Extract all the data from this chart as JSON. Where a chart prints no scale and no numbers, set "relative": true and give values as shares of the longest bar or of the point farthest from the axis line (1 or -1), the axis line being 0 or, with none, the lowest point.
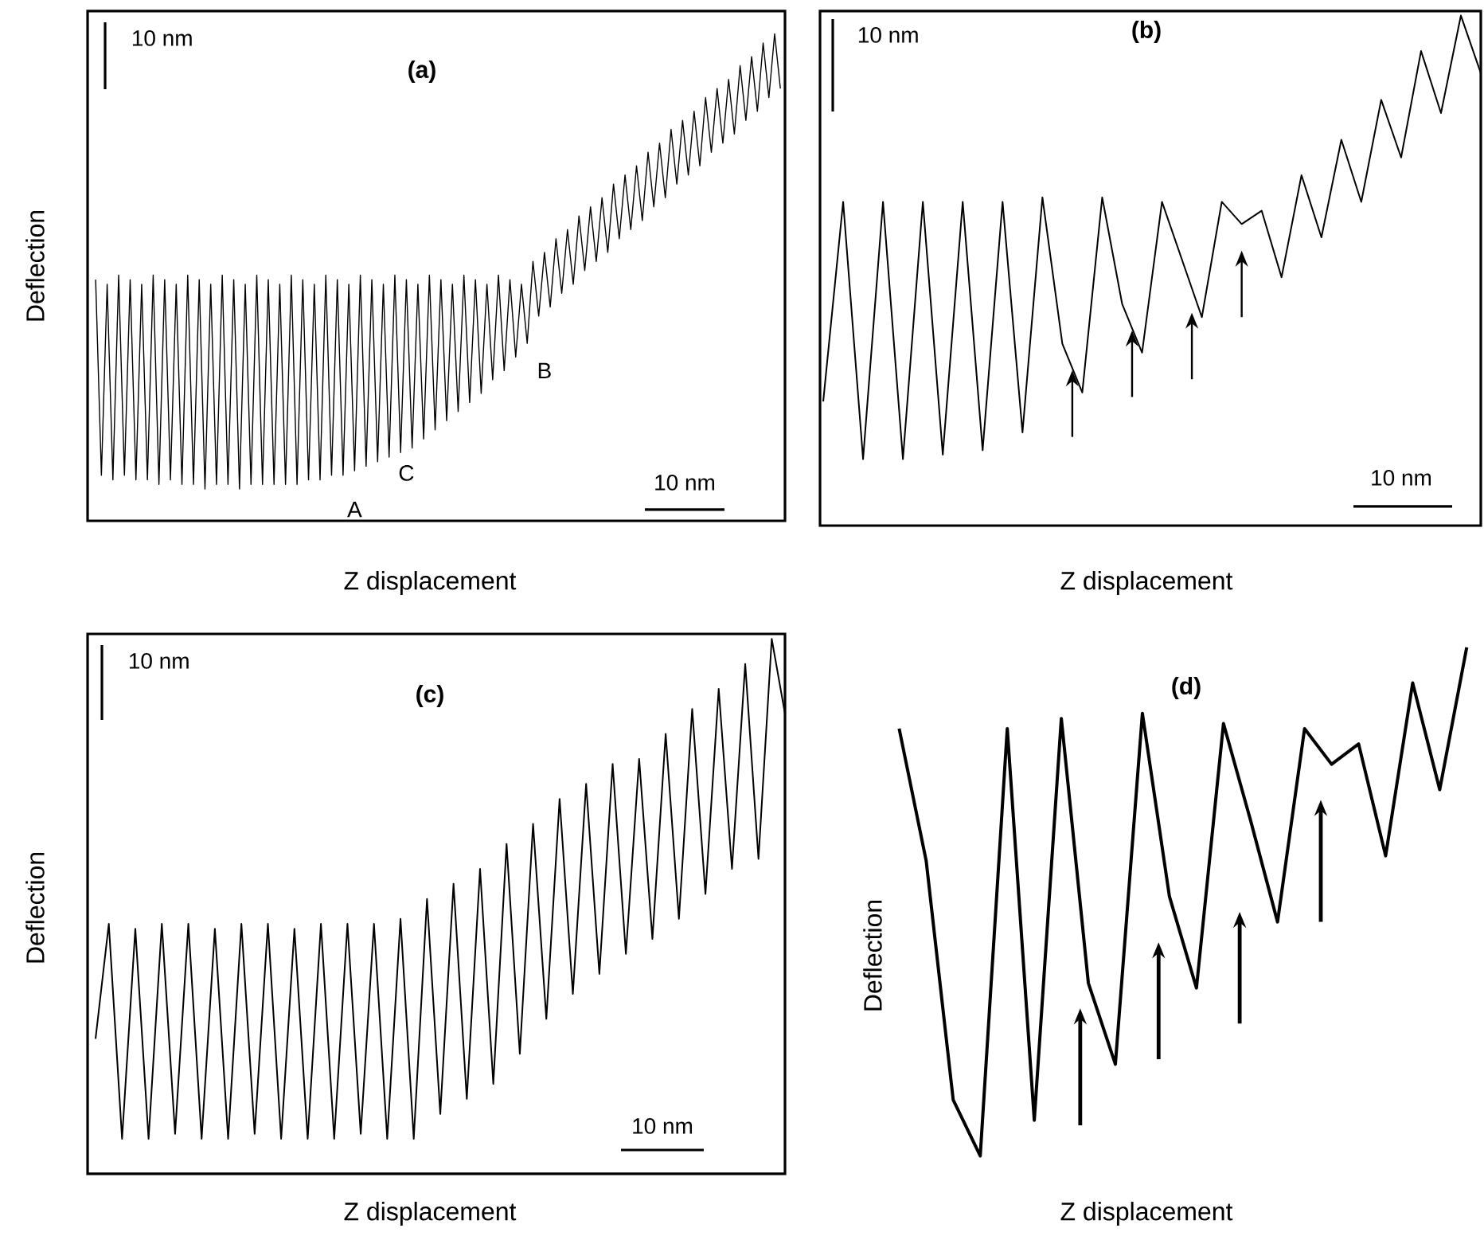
{
  "chart_data": [
    {
      "type": "line",
      "title": "(a)",
      "xlabel": "Z displacement",
      "ylabel": "Deflection",
      "relative": true,
      "color": "#000000",
      "annotations": [
        "10 nm",
        "10 nm",
        "A",
        "C",
        "B"
      ],
      "categories": [
        null,
        null,
        null,
        null,
        null,
        null,
        null,
        null,
        null,
        null,
        null,
        null,
        null,
        null,
        null,
        null,
        null,
        null,
        null,
        null,
        null,
        null,
        null,
        null,
        null,
        null,
        null,
        null,
        null,
        null,
        null,
        null,
        null,
        null,
        null,
        null,
        null,
        null,
        null,
        null,
        null,
        null,
        null,
        null,
        null,
        null,
        null,
        null,
        null,
        null,
        null,
        null,
        null,
        null,
        null,
        null,
        null,
        null,
        null,
        null,
        null,
        null,
        null,
        null,
        null,
        null,
        null,
        null,
        null,
        null,
        null,
        null,
        null,
        null,
        null,
        null,
        null,
        null,
        null,
        null,
        null,
        null,
        null,
        null,
        null,
        null,
        null,
        null,
        null,
        null,
        null,
        null,
        null,
        null,
        null,
        null,
        null,
        null,
        null,
        null,
        null,
        null,
        null,
        null,
        null,
        null,
        null,
        null,
        null,
        null,
        null,
        null,
        null,
        null,
        null,
        null,
        null,
        null,
        null,
        null
      ],
      "values": [
        0.46,
        0.03,
        0.45,
        0.02,
        0.47,
        0.03,
        0.46,
        0.02,
        0.45,
        0.02,
        0.47,
        0.01,
        0.46,
        0.02,
        0.45,
        0.01,
        0.47,
        0.01,
        0.46,
        0.0,
        0.45,
        0.01,
        0.47,
        0.01,
        0.46,
        0.0,
        0.45,
        0.01,
        0.47,
        0.01,
        0.46,
        0.01,
        0.45,
        0.01,
        0.47,
        0.01,
        0.46,
        0.02,
        0.45,
        0.02,
        0.47,
        0.03,
        0.46,
        0.03,
        0.45,
        0.04,
        0.47,
        0.05,
        0.46,
        0.06,
        0.45,
        0.07,
        0.47,
        0.08,
        0.46,
        0.09,
        0.45,
        0.11,
        0.47,
        0.13,
        0.46,
        0.15,
        0.45,
        0.17,
        0.47,
        0.19,
        0.46,
        0.21,
        0.45,
        0.24,
        0.47,
        0.26,
        0.46,
        0.29,
        0.45,
        0.32,
        0.5,
        0.38,
        0.52,
        0.4,
        0.55,
        0.43,
        0.57,
        0.45,
        0.6,
        0.48,
        0.62,
        0.5,
        0.64,
        0.52,
        0.67,
        0.55,
        0.69,
        0.57,
        0.71,
        0.59,
        0.74,
        0.62,
        0.76,
        0.64,
        0.79,
        0.67,
        0.81,
        0.69,
        0.83,
        0.71,
        0.86,
        0.74,
        0.88,
        0.76,
        0.9,
        0.78,
        0.93,
        0.81,
        0.95,
        0.83,
        0.98,
        0.86,
        1.0,
        0.88
      ]
    },
    {
      "type": "line",
      "title": "(b)",
      "xlabel": "Z displacement",
      "relative": true,
      "color": "#000000",
      "annotations": [
        "10 nm",
        "10 nm"
      ],
      "categories": [
        null,
        null,
        null,
        null,
        null,
        null,
        null,
        null,
        null,
        null,
        null,
        null,
        null,
        null,
        null,
        null,
        null,
        null,
        null,
        null,
        null,
        null,
        null,
        null,
        null,
        null,
        null,
        null,
        null,
        null,
        null,
        null,
        null,
        null
      ],
      "values": [
        0.13,
        0.58,
        0.0,
        0.58,
        0.0,
        0.58,
        0.01,
        0.58,
        0.02,
        0.58,
        0.06,
        0.59,
        0.26,
        0.15,
        0.59,
        0.35,
        0.24,
        0.58,
        0.45,
        0.32,
        0.58,
        0.53,
        0.56,
        0.41,
        0.64,
        0.5,
        0.72,
        0.58,
        0.81,
        0.68,
        0.92,
        0.78,
        1.0,
        0.87
      ]
    },
    {
      "type": "line",
      "title": "(c)",
      "xlabel": "Z displacement",
      "ylabel": "Deflection",
      "relative": true,
      "color": "#000000",
      "annotations": [
        "10 nm",
        "10 nm"
      ],
      "categories": [
        null,
        null,
        null,
        null,
        null,
        null,
        null,
        null,
        null,
        null,
        null,
        null,
        null,
        null,
        null,
        null,
        null,
        null,
        null,
        null,
        null,
        null,
        null,
        null,
        null,
        null,
        null,
        null,
        null,
        null,
        null,
        null,
        null,
        null,
        null,
        null,
        null,
        null,
        null,
        null,
        null,
        null,
        null,
        null,
        null,
        null,
        null,
        null,
        null,
        null,
        null,
        null,
        null
      ],
      "values": [
        0.2,
        0.43,
        0.0,
        0.42,
        0.0,
        0.43,
        0.01,
        0.43,
        0.0,
        0.42,
        0.0,
        0.43,
        0.01,
        0.43,
        0.0,
        0.42,
        0.0,
        0.43,
        0.0,
        0.43,
        0.01,
        0.43,
        0.0,
        0.44,
        0.0,
        0.48,
        0.05,
        0.51,
        0.08,
        0.54,
        0.11,
        0.59,
        0.17,
        0.63,
        0.24,
        0.68,
        0.29,
        0.71,
        0.33,
        0.75,
        0.37,
        0.76,
        0.4,
        0.81,
        0.44,
        0.86,
        0.49,
        0.9,
        0.54,
        0.95,
        0.56,
        1.0,
        0.85
      ]
    },
    {
      "type": "line",
      "title": "(d)",
      "xlabel": "Z displacement",
      "ylabel": "Deflection",
      "relative": true,
      "color": "#000000",
      "categories": [
        null,
        null,
        null,
        null,
        null,
        null,
        null,
        null,
        null,
        null,
        null,
        null,
        null,
        null,
        null,
        null,
        null,
        null,
        null,
        null,
        null,
        null
      ],
      "values": [
        0.84,
        0.58,
        0.11,
        0.0,
        0.84,
        0.07,
        0.86,
        0.34,
        0.18,
        0.87,
        0.51,
        0.33,
        0.85,
        0.66,
        0.46,
        0.84,
        0.77,
        0.81,
        0.59,
        0.93,
        0.72,
        1.0
      ]
    }
  ]
}
